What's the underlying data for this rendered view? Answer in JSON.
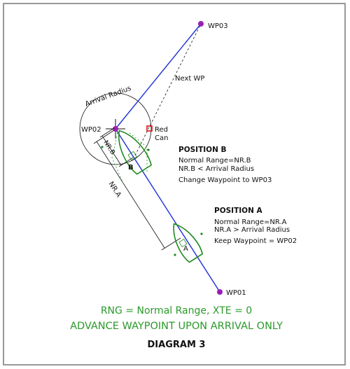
{
  "waypoints": {
    "wp01": "WP01",
    "wp02": "WP02",
    "wp03": "WP03"
  },
  "labels": {
    "next_wp": "Next WP",
    "arrival_radius": "Arrival Radius",
    "red_can_line1": "Red",
    "red_can_line2": "Can",
    "nr_b": "NR.B",
    "nr_a": "NR.A",
    "boat_a": "A",
    "boat_b": "B"
  },
  "position_b": {
    "title": "POSITION B",
    "line1": "Normal Range=NR.B",
    "line2": "NR.B < Arrival Radius",
    "line3": "Change Waypoint to WP03"
  },
  "position_a": {
    "title": "POSITION A",
    "line1": "Normal Range=NR.A",
    "line2": "NR.A > Arrival Radius",
    "line3": "Keep Waypoint = WP02"
  },
  "footer": {
    "legend": "RNG = Normal Range, XTE = 0",
    "rule": "ADVANCE WAYPOINT UPON ARRIVAL ONLY",
    "title": "DIAGRAM 3"
  },
  "colors": {
    "route": "#1c2fd6",
    "waypoint": "#9b1fb4",
    "boat": "#1f8a1f",
    "text_green": "#2a9a2a",
    "red_can": "#e01010",
    "ink": "#111111"
  }
}
